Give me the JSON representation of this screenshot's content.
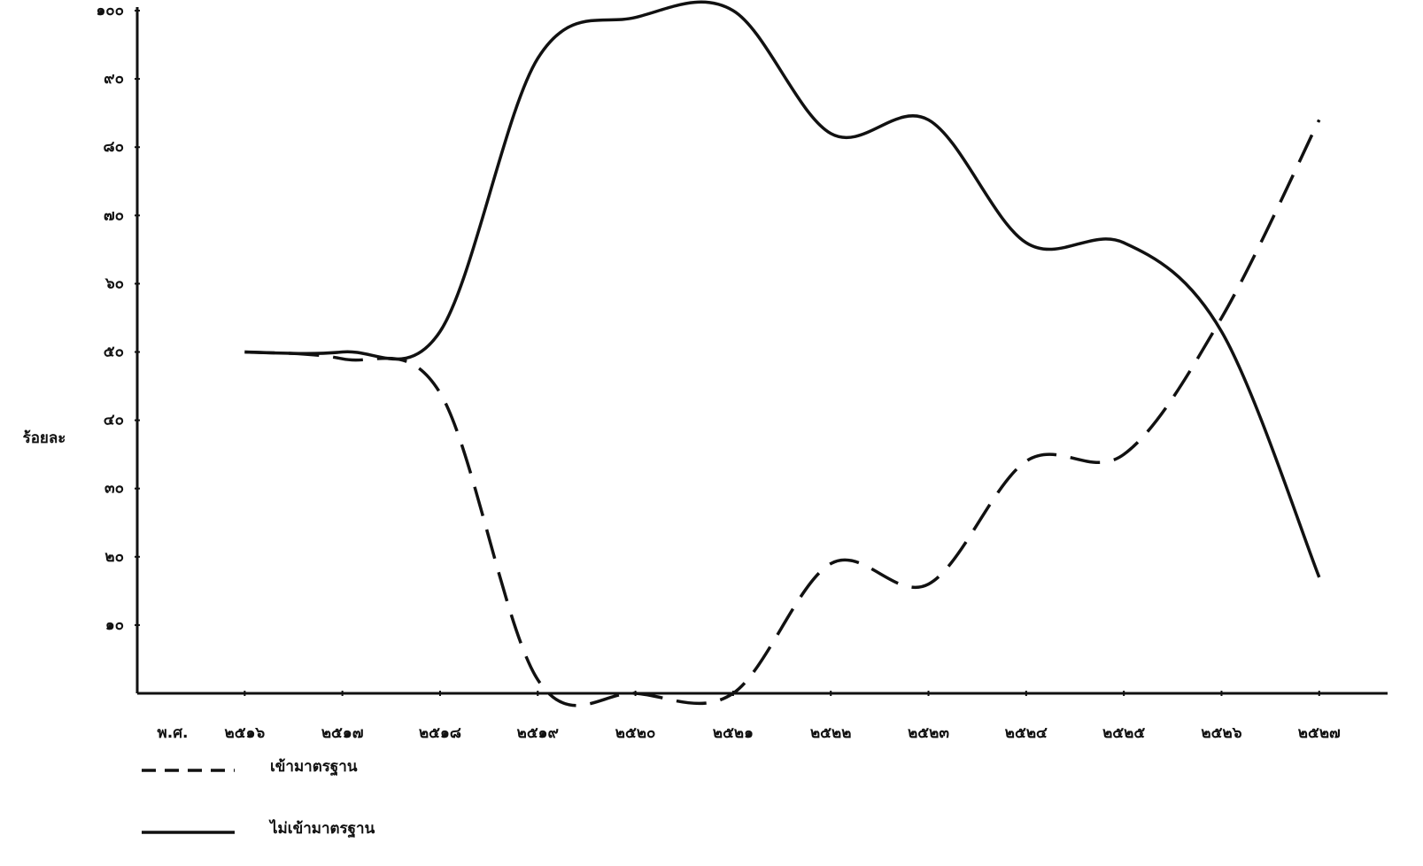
{
  "chart_data": {
    "type": "line",
    "ylabel": "ร้อยละ",
    "xlabel": "พ.ศ.",
    "x": [
      2516,
      2517,
      2518,
      2519,
      2520,
      2521,
      2522,
      2523,
      2524,
      2525,
      2526,
      2527
    ],
    "xlim": [
      2514.9,
      2527.7
    ],
    "xticks": [
      {
        "value": 2516,
        "label": "๒๕๑๖"
      },
      {
        "value": 2517,
        "label": "๒๕๑๗"
      },
      {
        "value": 2518,
        "label": "๒๕๑๘"
      },
      {
        "value": 2519,
        "label": "๒๕๑๙"
      },
      {
        "value": 2520,
        "label": "๒๕๒๐"
      },
      {
        "value": 2521,
        "label": "๒๕๒๑"
      },
      {
        "value": 2522,
        "label": "๒๕๒๒"
      },
      {
        "value": 2523,
        "label": "๒๕๒๓"
      },
      {
        "value": 2524,
        "label": "๒๕๒๔"
      },
      {
        "value": 2525,
        "label": "๒๕๒๕"
      },
      {
        "value": 2526,
        "label": "๒๕๒๖"
      },
      {
        "value": 2527,
        "label": "๒๕๒๗"
      }
    ],
    "ylim": [
      0,
      100
    ],
    "yticks": [
      {
        "value": 10,
        "label": "๑๐"
      },
      {
        "value": 20,
        "label": "๒๐"
      },
      {
        "value": 30,
        "label": "๓๐"
      },
      {
        "value": 40,
        "label": "๔๐"
      },
      {
        "value": 50,
        "label": "๕๐"
      },
      {
        "value": 60,
        "label": "๖๐"
      },
      {
        "value": 70,
        "label": "๗๐"
      },
      {
        "value": 80,
        "label": "๘๐"
      },
      {
        "value": 90,
        "label": "๙๐"
      },
      {
        "value": 100,
        "label": "๑๐๐"
      }
    ],
    "series": [
      {
        "name": "เข้ามาตรฐาน",
        "color": "#111111",
        "dash": true,
        "values": [
          50,
          49,
          44,
          2,
          0,
          0,
          19,
          16,
          34,
          35,
          55,
          84
        ]
      },
      {
        "name": "ไม่เข้ามาตรฐาน",
        "color": "#111111",
        "dash": false,
        "values": [
          50,
          50,
          53,
          93,
          99,
          100,
          82,
          84,
          66,
          66,
          53,
          17
        ]
      }
    ]
  }
}
